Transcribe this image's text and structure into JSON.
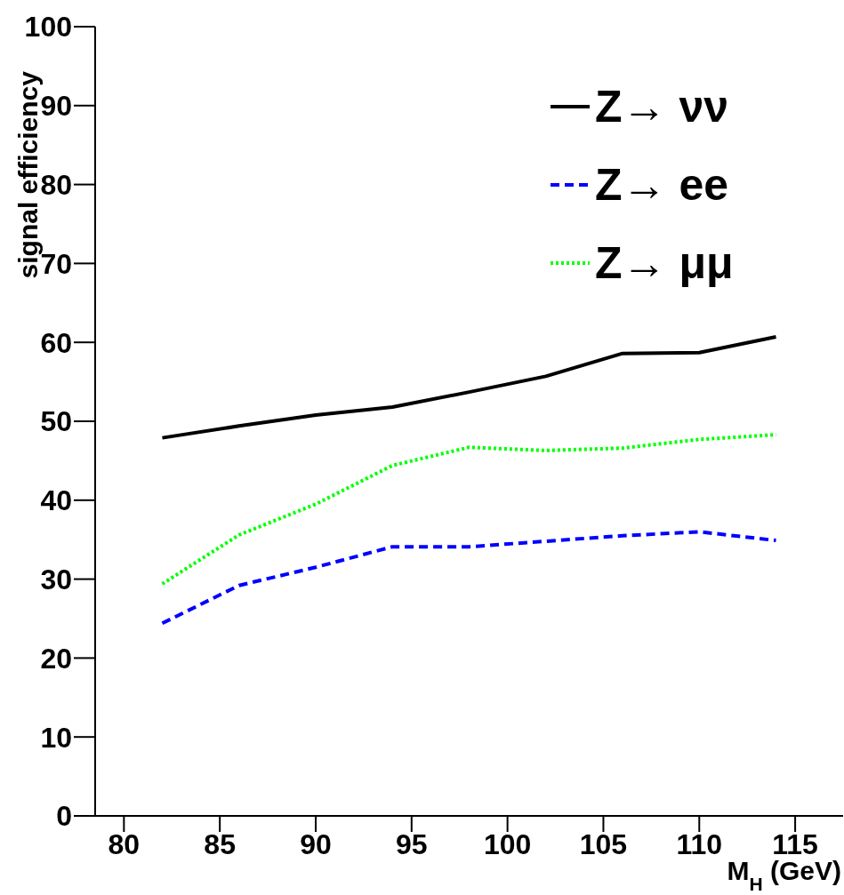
{
  "chart_data": {
    "type": "line",
    "xlabel": "M$_{H}$ (GeV)",
    "ylabel": "signal efficiency",
    "x": [
      82,
      86,
      90,
      94,
      98,
      102,
      106,
      110,
      114
    ],
    "series": [
      {
        "name": "Z→ νν",
        "color": "#000000",
        "line_style": "solid",
        "values": [
          47.9,
          49.4,
          50.8,
          51.8,
          53.7,
          55.7,
          58.6,
          58.7,
          60.7
        ]
      },
      {
        "name": "Z→ ee",
        "color": "#0000ff",
        "line_style": "dashed",
        "values": [
          24.4,
          29.2,
          31.5,
          34.1,
          34.1,
          34.8,
          35.5,
          36.0,
          34.9
        ]
      },
      {
        "name": "Z→ μμ",
        "color": "#00ff00",
        "line_style": "dotted",
        "values": [
          29.4,
          35.6,
          39.5,
          44.4,
          46.7,
          46.3,
          46.6,
          47.7,
          48.3
        ]
      }
    ],
    "xlim": [
      78.5,
      117.5
    ],
    "xticks": [
      80,
      85,
      90,
      95,
      100,
      105,
      110,
      115
    ],
    "ylim": [
      0,
      100
    ],
    "yticks": [
      0,
      10,
      20,
      30,
      40,
      50,
      60,
      70,
      80,
      90,
      100
    ],
    "legend": "top right",
    "grid": false,
    "marker": "none"
  }
}
